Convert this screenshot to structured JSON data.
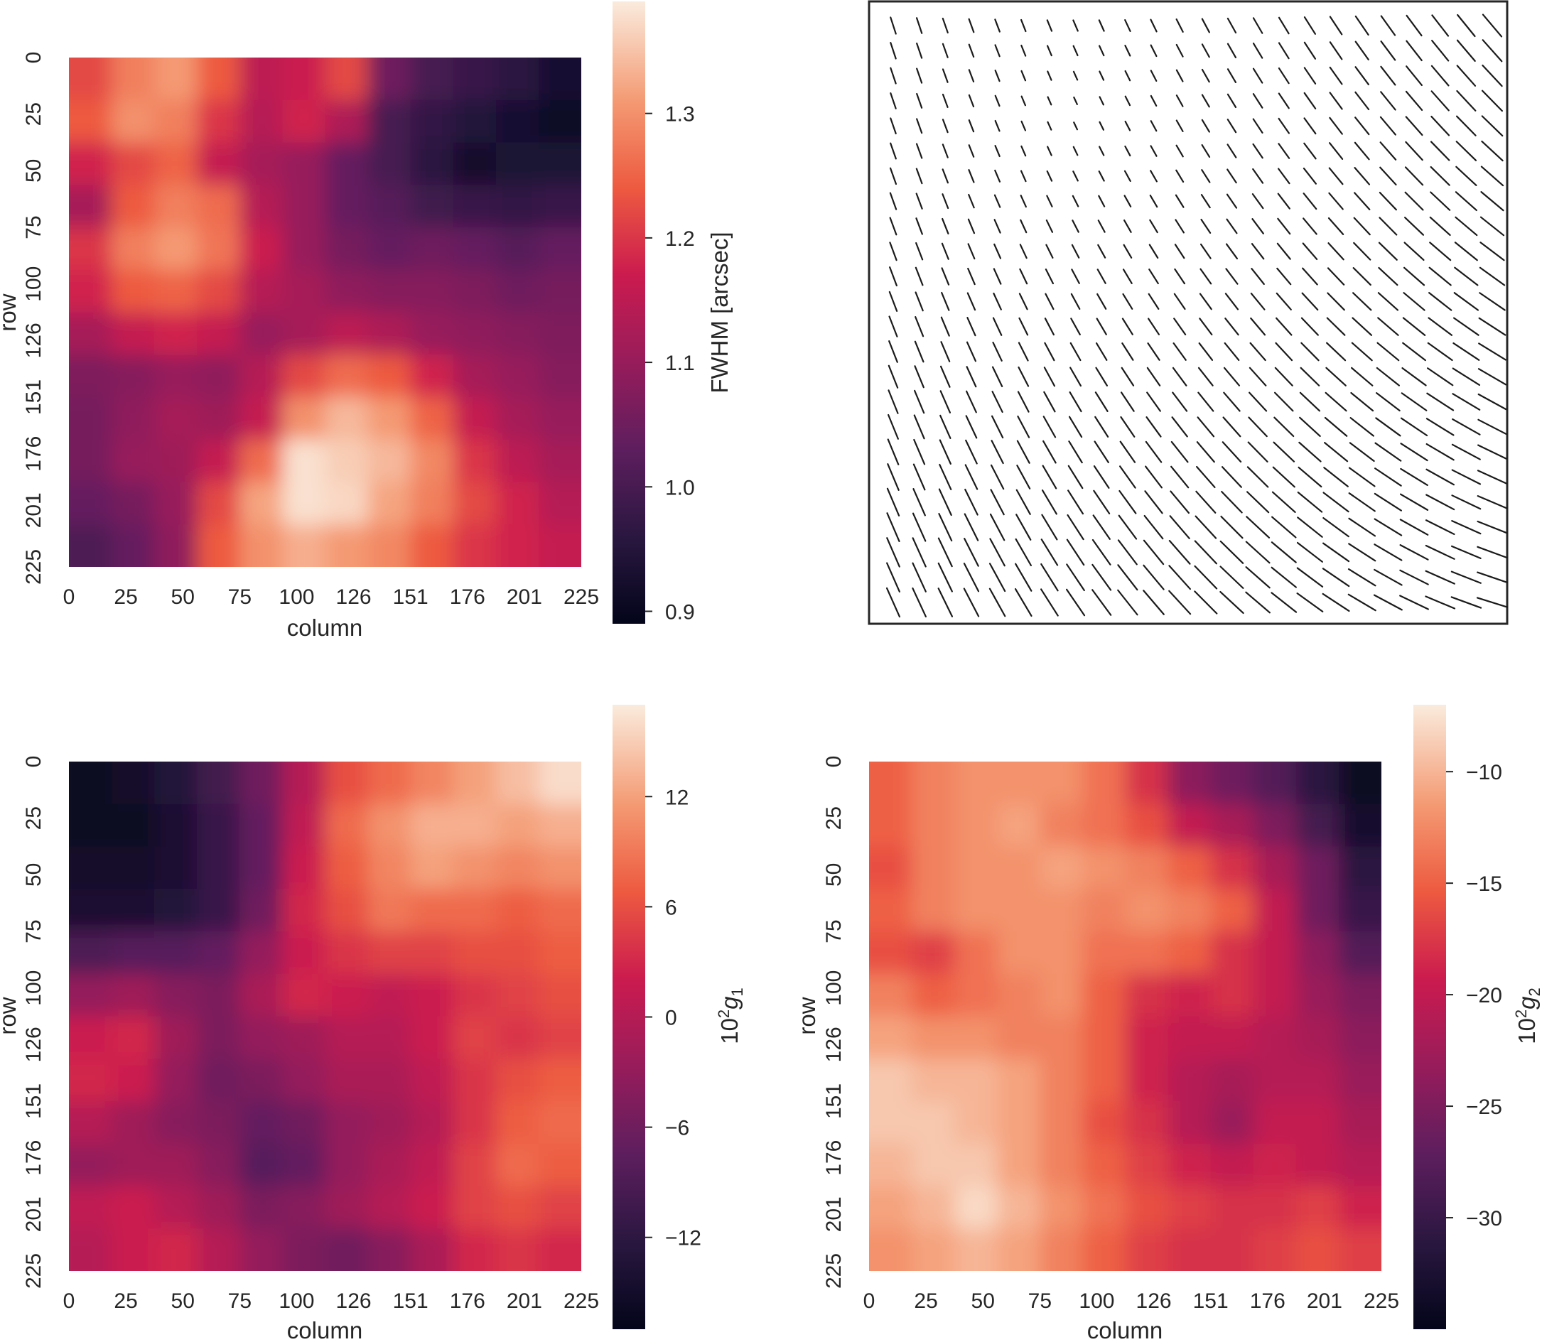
{
  "chart_data": [
    {
      "id": "fwhm",
      "type": "heatmap",
      "xlabel": "column",
      "ylabel": "row",
      "xticks": [
        "0",
        "25",
        "50",
        "75",
        "100",
        "126",
        "151",
        "176",
        "201",
        "225"
      ],
      "yticks": [
        "0",
        "25",
        "50",
        "75",
        "100",
        "126",
        "151",
        "176",
        "201",
        "225"
      ],
      "colorbar": {
        "label": "FWHM [arcsec]",
        "range": [
          0.89,
          1.39
        ],
        "ticks": [
          0.9,
          1.0,
          1.1,
          1.2,
          1.3
        ],
        "tick_labels": [
          "0.9",
          "1.0",
          "1.1",
          "1.2",
          "1.3"
        ]
      },
      "colormap": "rocket",
      "grid_values": [
        [
          1.22,
          1.28,
          1.31,
          1.24,
          1.15,
          1.17,
          1.22,
          1.05,
          1.0,
          0.98,
          0.96,
          0.93
        ],
        [
          1.24,
          1.3,
          1.28,
          1.2,
          1.14,
          1.18,
          1.13,
          1.0,
          0.97,
          0.95,
          0.93,
          0.91
        ],
        [
          1.18,
          1.22,
          1.25,
          1.16,
          1.12,
          1.1,
          1.04,
          1.0,
          0.96,
          0.92,
          0.94,
          0.94
        ],
        [
          1.12,
          1.24,
          1.28,
          1.26,
          1.14,
          1.1,
          1.04,
          1.02,
          0.99,
          0.98,
          0.97,
          0.98
        ],
        [
          1.2,
          1.28,
          1.31,
          1.27,
          1.17,
          1.1,
          1.06,
          1.04,
          1.05,
          1.04,
          1.02,
          1.04
        ],
        [
          1.18,
          1.24,
          1.25,
          1.22,
          1.14,
          1.12,
          1.09,
          1.08,
          1.08,
          1.07,
          1.05,
          1.06
        ],
        [
          1.12,
          1.16,
          1.18,
          1.16,
          1.1,
          1.12,
          1.15,
          1.13,
          1.1,
          1.09,
          1.08,
          1.07
        ],
        [
          1.07,
          1.08,
          1.1,
          1.09,
          1.14,
          1.22,
          1.26,
          1.24,
          1.18,
          1.12,
          1.1,
          1.08
        ],
        [
          1.06,
          1.09,
          1.12,
          1.11,
          1.16,
          1.3,
          1.34,
          1.31,
          1.25,
          1.16,
          1.12,
          1.1
        ],
        [
          1.06,
          1.1,
          1.11,
          1.16,
          1.26,
          1.38,
          1.36,
          1.34,
          1.29,
          1.2,
          1.15,
          1.12
        ],
        [
          1.04,
          1.06,
          1.1,
          1.22,
          1.32,
          1.38,
          1.37,
          1.32,
          1.28,
          1.22,
          1.18,
          1.14
        ],
        [
          1.01,
          1.04,
          1.09,
          1.24,
          1.3,
          1.33,
          1.31,
          1.29,
          1.24,
          1.2,
          1.18,
          1.16
        ]
      ]
    },
    {
      "id": "whisker",
      "type": "vector_field",
      "grid": [
        24,
        24
      ],
      "note": "headless PSF ellipticity whiskers"
    },
    {
      "id": "g1",
      "type": "heatmap",
      "xlabel": "column",
      "ylabel": "",
      "xticks": [
        "0",
        "25",
        "50",
        "75",
        "100",
        "126",
        "151",
        "176",
        "201",
        "225"
      ],
      "yticks": [
        "0",
        "25",
        "50",
        "75",
        "100",
        "126",
        "151",
        "176",
        "201",
        "225"
      ],
      "colorbar": {
        "label": "10²g₁",
        "range": [
          -17,
          17
        ],
        "ticks": [
          -12,
          -6,
          0,
          6,
          12
        ],
        "tick_labels": [
          "−12",
          "−6",
          "0",
          "6",
          "12"
        ]
      },
      "colormap": "rocket",
      "grid_values": [
        [
          -16,
          -15,
          -13,
          -10,
          -6,
          0,
          6,
          8,
          10,
          12,
          14,
          16
        ],
        [
          -16,
          -16,
          -14,
          -11,
          -7,
          1,
          8,
          11,
          13,
          13,
          12,
          13
        ],
        [
          -15,
          -15,
          -14,
          -11,
          -7,
          2,
          7,
          10,
          12,
          11,
          10,
          11
        ],
        [
          -14,
          -14,
          -13,
          -11,
          -6,
          3,
          6,
          9,
          8,
          8,
          7,
          8
        ],
        [
          -9,
          -8,
          -8,
          -7,
          -3,
          2,
          4,
          5,
          5,
          6,
          6,
          7
        ],
        [
          -3,
          -2,
          -4,
          -5,
          -1,
          3,
          2,
          1,
          2,
          4,
          5,
          6
        ],
        [
          2,
          3,
          -2,
          -5,
          -3,
          -2,
          0,
          0,
          2,
          5,
          4,
          5
        ],
        [
          3,
          2,
          -3,
          -6,
          -5,
          -3,
          -1,
          -1,
          1,
          4,
          6,
          7
        ],
        [
          0,
          -2,
          -4,
          -5,
          -7,
          -6,
          -3,
          -2,
          0,
          4,
          7,
          8
        ],
        [
          -3,
          -2,
          -2,
          -4,
          -8,
          -7,
          -3,
          -1,
          1,
          5,
          8,
          7
        ],
        [
          1,
          2,
          0,
          -2,
          -5,
          -4,
          -2,
          0,
          2,
          5,
          6,
          5
        ],
        [
          0,
          2,
          3,
          0,
          -3,
          -5,
          -6,
          -4,
          -1,
          3,
          4,
          3
        ]
      ]
    },
    {
      "id": "g2",
      "type": "heatmap",
      "xlabel": "column",
      "ylabel": "row",
      "xticks": [
        "0",
        "25",
        "50",
        "75",
        "100",
        "126",
        "151",
        "176",
        "201",
        "225"
      ],
      "yticks": [
        "0",
        "25",
        "50",
        "75",
        "100",
        "126",
        "151",
        "176",
        "201",
        "225"
      ],
      "colorbar": {
        "label": "10²g₂",
        "range": [
          -35,
          -7
        ],
        "ticks": [
          -30,
          -25,
          -20,
          -15,
          -10
        ],
        "tick_labels": [
          "−30",
          "−25",
          "−20",
          "−15",
          "−10"
        ]
      },
      "colormap": "rocket",
      "grid_values": [
        [
          -15,
          -13,
          -12,
          -12,
          -12,
          -14,
          -18,
          -24,
          -26,
          -28,
          -31,
          -34
        ],
        [
          -15,
          -13,
          -12,
          -11,
          -13,
          -14,
          -16,
          -20,
          -22,
          -25,
          -29,
          -33
        ],
        [
          -16,
          -13,
          -12,
          -12,
          -11,
          -12,
          -13,
          -15,
          -18,
          -22,
          -26,
          -31
        ],
        [
          -15,
          -13,
          -12,
          -12,
          -12,
          -13,
          -12,
          -13,
          -15,
          -20,
          -26,
          -30
        ],
        [
          -16,
          -17,
          -14,
          -12,
          -12,
          -14,
          -14,
          -15,
          -18,
          -20,
          -24,
          -28
        ],
        [
          -13,
          -15,
          -14,
          -13,
          -12,
          -15,
          -18,
          -19,
          -18,
          -20,
          -23,
          -25
        ],
        [
          -11,
          -12,
          -12,
          -13,
          -13,
          -15,
          -19,
          -20,
          -20,
          -21,
          -22,
          -24
        ],
        [
          -9,
          -10,
          -10,
          -11,
          -13,
          -15,
          -19,
          -21,
          -22,
          -21,
          -21,
          -23
        ],
        [
          -9,
          -9,
          -10,
          -11,
          -13,
          -16,
          -18,
          -21,
          -23,
          -20,
          -20,
          -22
        ],
        [
          -10,
          -9,
          -9,
          -11,
          -13,
          -15,
          -17,
          -19,
          -20,
          -19,
          -20,
          -21
        ],
        [
          -11,
          -10,
          -8,
          -10,
          -12,
          -14,
          -16,
          -17,
          -18,
          -18,
          -17,
          -19
        ],
        [
          -12,
          -11,
          -10,
          -11,
          -13,
          -15,
          -17,
          -18,
          -18,
          -17,
          -16,
          -17
        ]
      ]
    }
  ]
}
